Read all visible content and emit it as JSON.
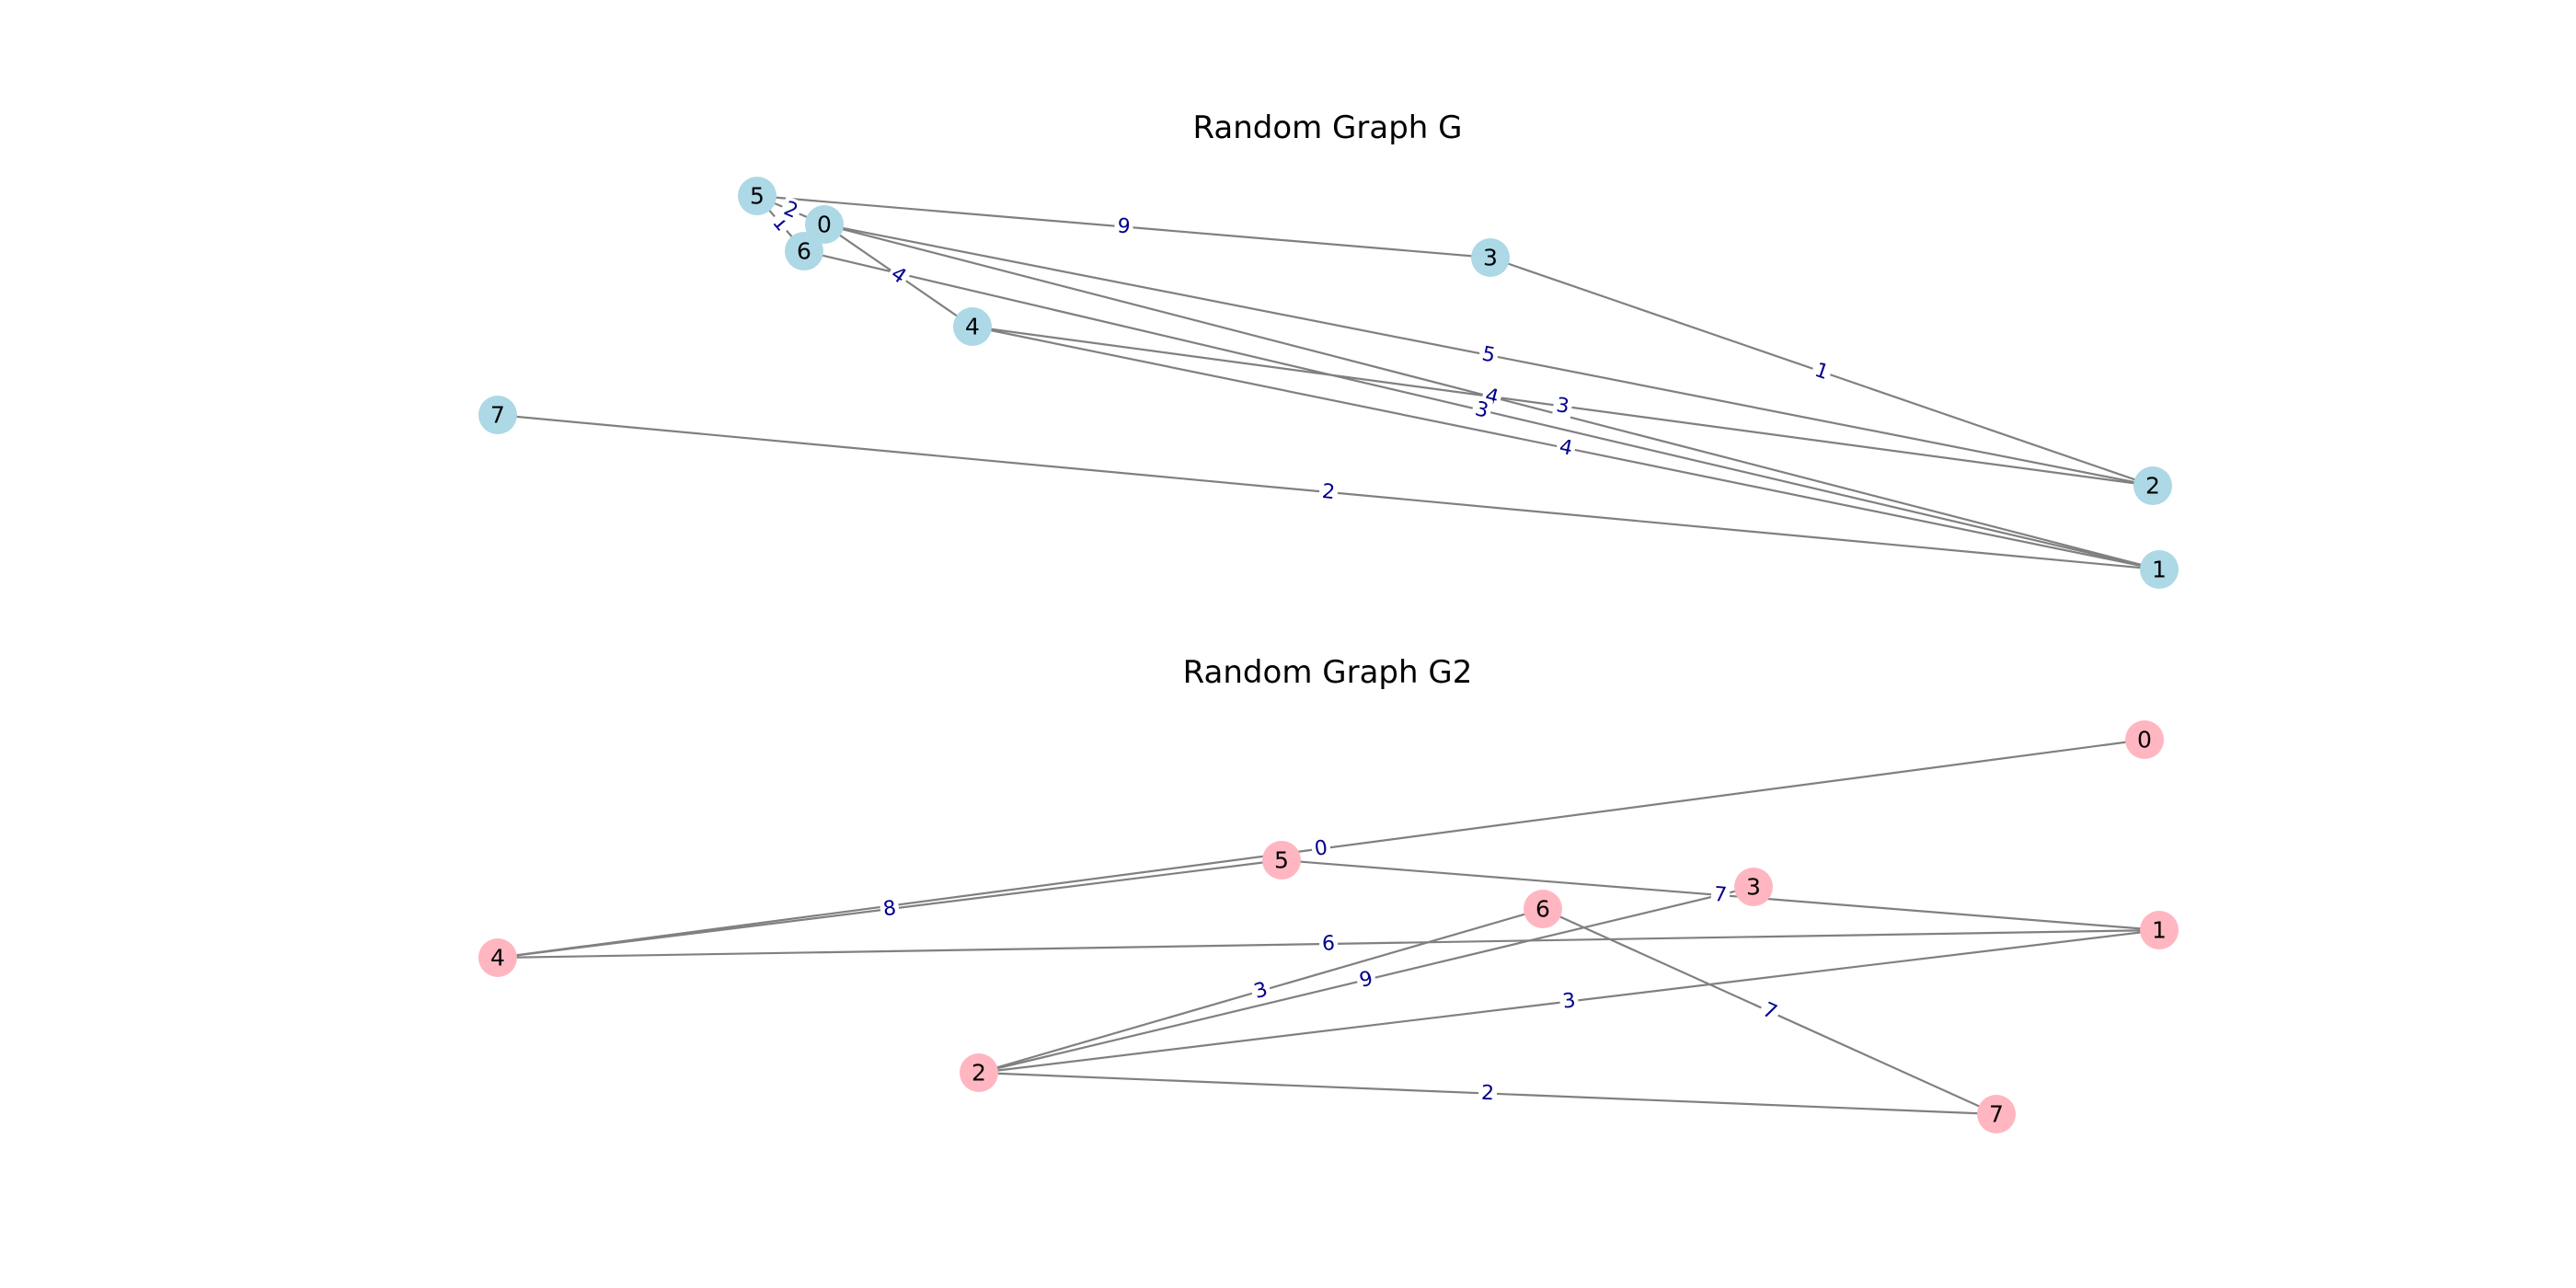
{
  "graphs": [
    {
      "title": "Random Graph G",
      "node_color": "#add8e6",
      "nodes": [
        "0",
        "1",
        "2",
        "3",
        "4",
        "5",
        "6",
        "7"
      ],
      "edges": [
        {
          "source": "5",
          "target": "3",
          "weight": "9"
        },
        {
          "source": "5",
          "target": "6",
          "weight": "1"
        },
        {
          "source": "5",
          "target": "0",
          "weight": "2"
        },
        {
          "source": "3",
          "target": "2",
          "weight": "1"
        },
        {
          "source": "0",
          "target": "4",
          "weight": "4"
        },
        {
          "source": "0",
          "target": "2",
          "weight": "5"
        },
        {
          "source": "0",
          "target": "1",
          "weight": "4"
        },
        {
          "source": "6",
          "target": "1",
          "weight": "3"
        },
        {
          "source": "4",
          "target": "2",
          "weight": "3"
        },
        {
          "source": "4",
          "target": "1",
          "weight": "4"
        },
        {
          "source": "7",
          "target": "1",
          "weight": "2"
        }
      ]
    },
    {
      "title": "Random Graph G2",
      "node_color": "#ffb6c1",
      "nodes": [
        "0",
        "1",
        "2",
        "3",
        "4",
        "5",
        "6",
        "7"
      ],
      "edges": [
        {
          "source": "4",
          "target": "0",
          "weight": "0"
        },
        {
          "source": "4",
          "target": "5",
          "weight": "8"
        },
        {
          "source": "4",
          "target": "1",
          "weight": "6"
        },
        {
          "source": "5",
          "target": "1",
          "weight": "7"
        },
        {
          "source": "2",
          "target": "6",
          "weight": "3"
        },
        {
          "source": "2",
          "target": "3",
          "weight": "9"
        },
        {
          "source": "2",
          "target": "1",
          "weight": "3"
        },
        {
          "source": "2",
          "target": "7",
          "weight": "2"
        },
        {
          "source": "6",
          "target": "7",
          "weight": "7"
        }
      ]
    }
  ]
}
